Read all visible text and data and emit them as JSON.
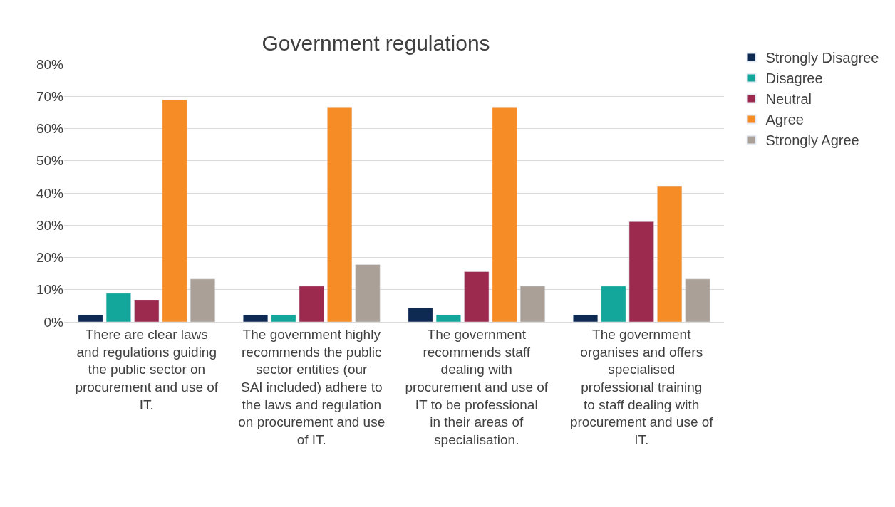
{
  "chart_data": {
    "type": "bar",
    "title": "Government regulations",
    "categories": [
      "There are clear laws and regulations guiding the public sector on procurement and use of IT.",
      "The government highly recommends the public sector entities (our SAI included) adhere to the laws and regulation on procurement and use of IT.",
      "The government recommends staff dealing with procurement and use of IT to be professional in their areas of specialisation.",
      "The government organises and offers specialised professional training to staff dealing with procurement and use of IT."
    ],
    "series": [
      {
        "name": "Strongly Disagree",
        "color": "#0f2a52",
        "values": [
          2.2,
          2.2,
          4.4,
          2.2
        ]
      },
      {
        "name": "Disagree",
        "color": "#12a79a",
        "values": [
          8.9,
          2.2,
          2.2,
          11.1
        ]
      },
      {
        "name": "Neutral",
        "color": "#9c2a4e",
        "values": [
          6.7,
          11.1,
          15.6,
          31.1
        ]
      },
      {
        "name": "Agree",
        "color": "#f58c25",
        "values": [
          68.9,
          66.7,
          66.7,
          42.2
        ]
      },
      {
        "name": "Strongly Agree",
        "color": "#aaa097",
        "values": [
          13.3,
          17.8,
          11.1,
          13.3
        ]
      }
    ],
    "ylim": [
      0,
      80
    ],
    "yticks": [
      {
        "value": 0,
        "label": "0%"
      },
      {
        "value": 10,
        "label": "10%"
      },
      {
        "value": 20,
        "label": "20%"
      },
      {
        "value": 30,
        "label": "30%"
      },
      {
        "value": 40,
        "label": "40%"
      },
      {
        "value": 50,
        "label": "50%"
      },
      {
        "value": 60,
        "label": "60%"
      },
      {
        "value": 70,
        "label": "70%"
      },
      {
        "value": 80,
        "label": "80%"
      }
    ],
    "grid": "y",
    "legend": "right"
  }
}
